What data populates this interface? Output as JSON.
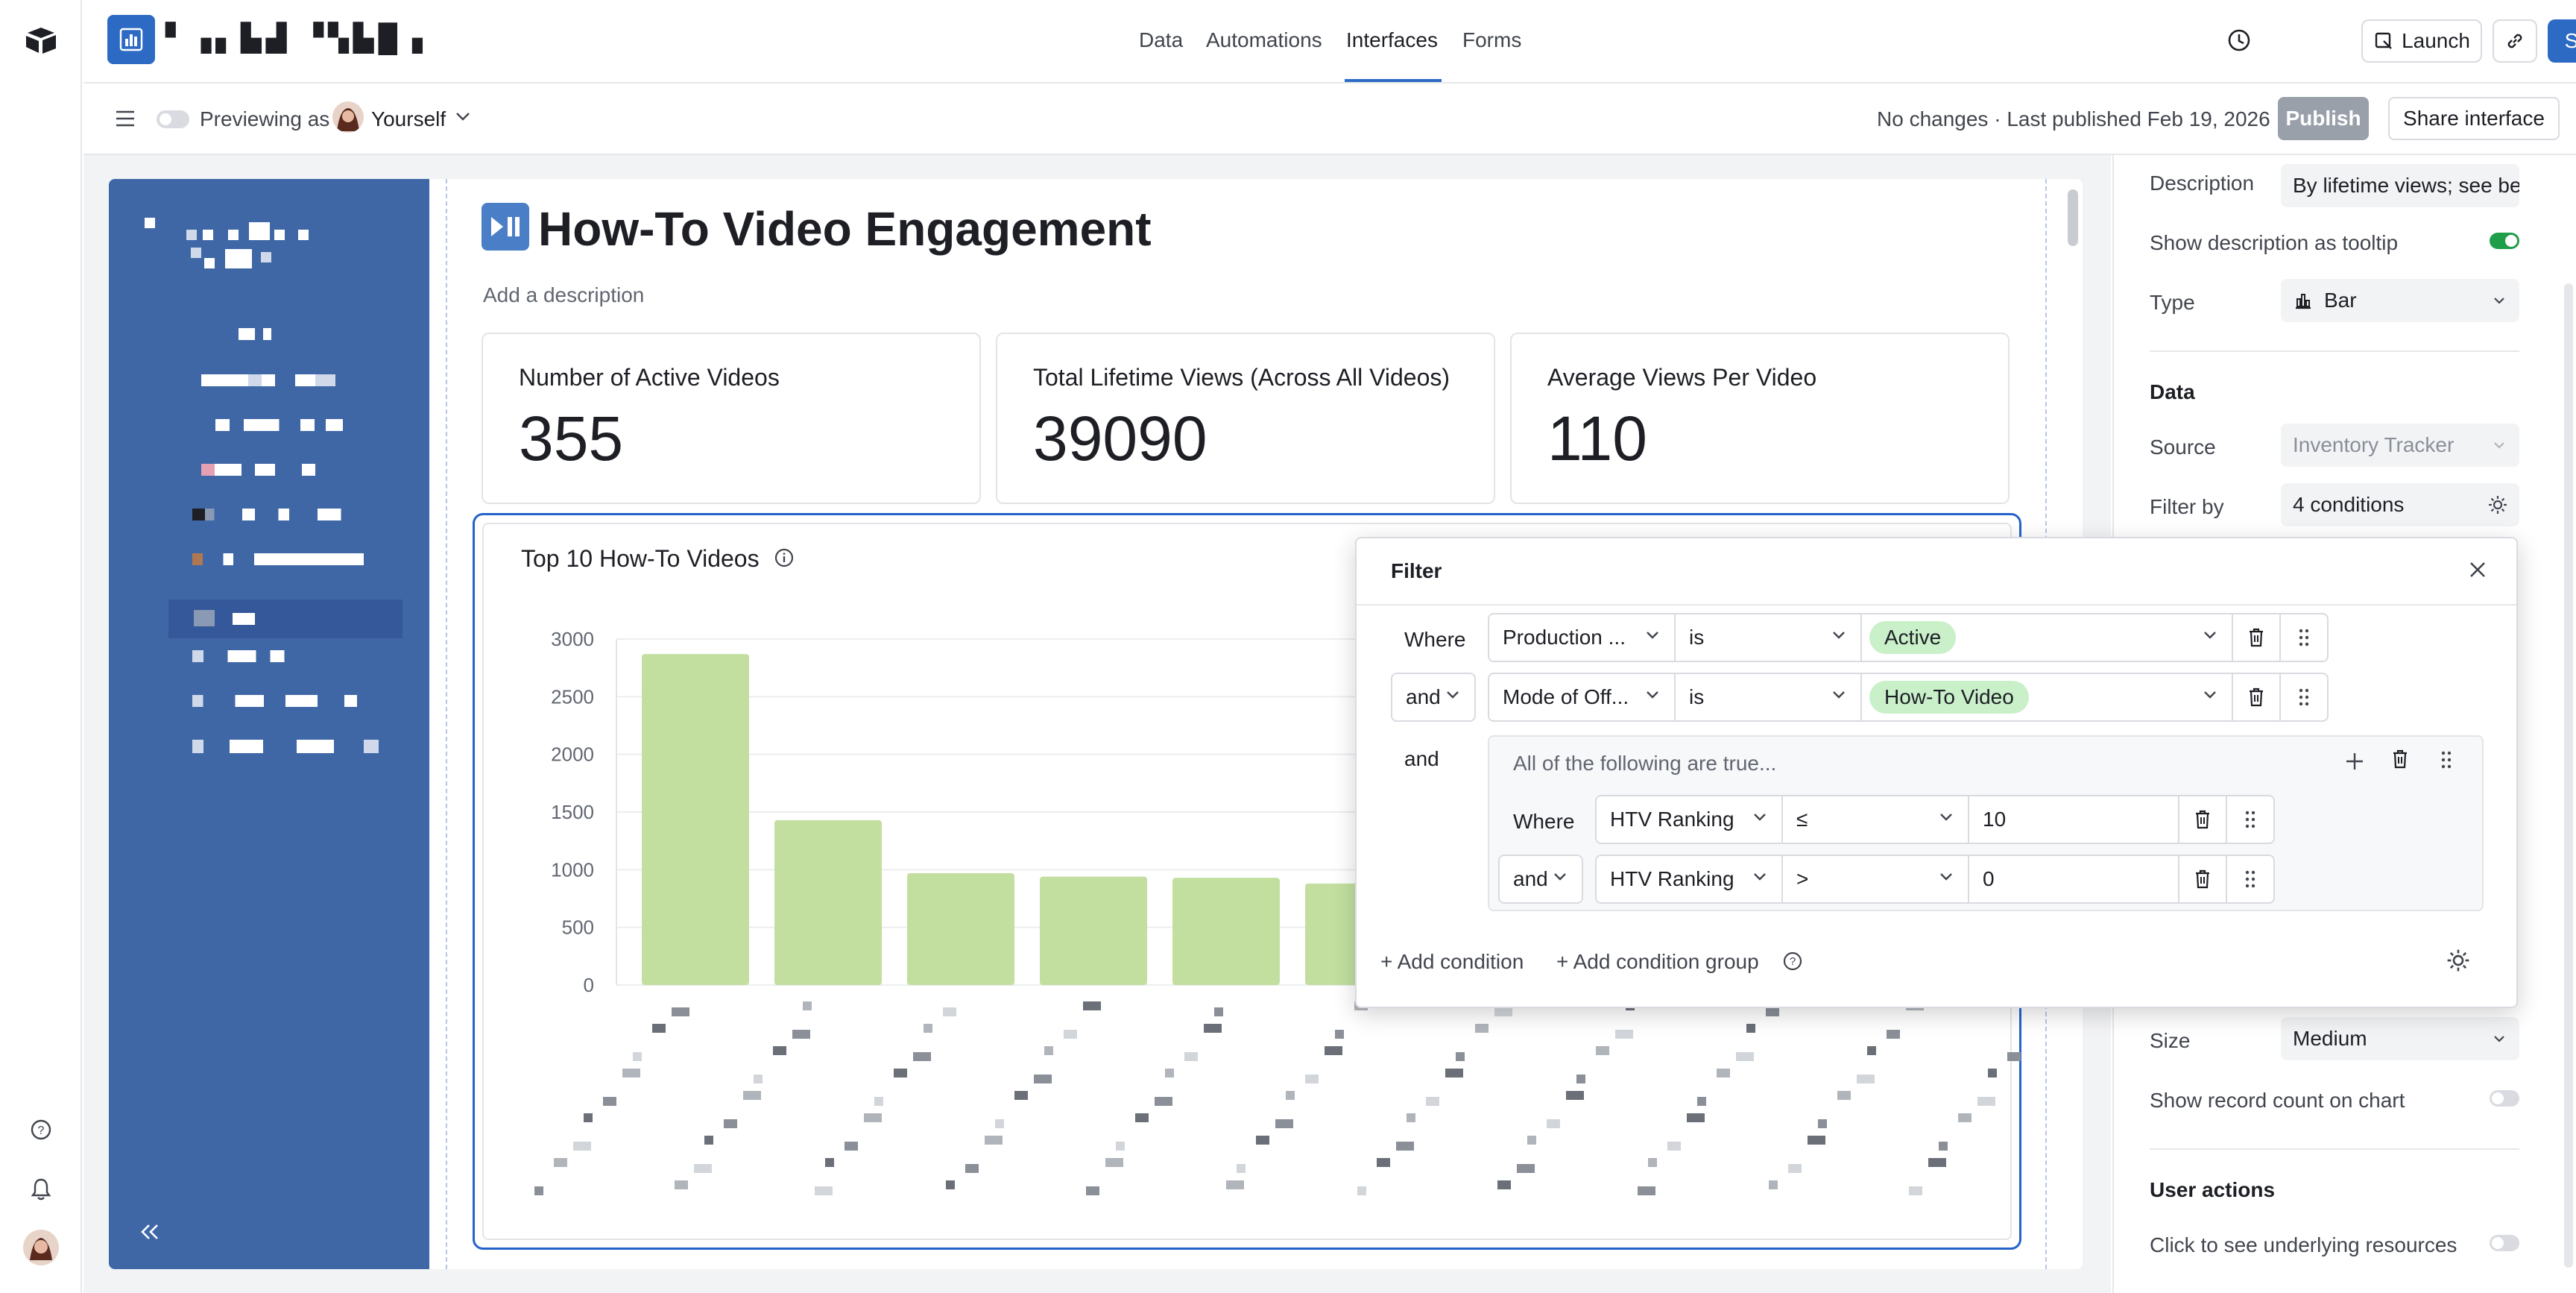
{
  "topbar": {
    "base_name": "▘▗▖▙▟ ▝▚▙█▗",
    "tabs": [
      {
        "label": "Data"
      },
      {
        "label": "Automations"
      },
      {
        "label": "Interfaces"
      },
      {
        "label": "Forms"
      }
    ],
    "launch_label": "Launch",
    "share_label": "Share"
  },
  "subbar": {
    "previewing_label": "Previewing as",
    "user_label": "Yourself",
    "status": "No changes · Last published Feb 19, 2026",
    "publish_label": "Publish",
    "share_interface_label": "Share interface"
  },
  "page": {
    "title": "How-To Video Engagement",
    "description_placeholder": "Add a description",
    "kpis": [
      {
        "label": "Number of Active Videos",
        "value": "355"
      },
      {
        "label": "Total Lifetime Views (Across All Videos)",
        "value": "39090"
      },
      {
        "label": "Average Views Per Video",
        "value": "110"
      }
    ]
  },
  "chart_data": {
    "type": "bar",
    "title": "Top 10 How-To Videos",
    "ylim": [
      0,
      3000
    ],
    "yticks": [
      "3000",
      "2500",
      "2000",
      "1500",
      "1000",
      "500",
      "0"
    ],
    "values": [
      2870,
      1430,
      970,
      940,
      930,
      880
    ],
    "color": "#c2dfa0"
  },
  "filter": {
    "title": "Filter",
    "rows": [
      {
        "conj": "Where",
        "field": "Production ...",
        "op": "is",
        "value": "Active"
      },
      {
        "conj": "and",
        "field": "Mode of Off...",
        "op": "is",
        "value": "How-To Video"
      }
    ],
    "group": {
      "conj": "and",
      "header": "All of the following are true...",
      "rows": [
        {
          "conj": "Where",
          "field": "HTV Ranking",
          "op": "≤",
          "value": "10"
        },
        {
          "conj": "and",
          "field": "HTV Ranking",
          "op": ">",
          "value": "0"
        }
      ]
    },
    "add_condition": "+ Add condition",
    "add_group": "+ Add condition group"
  },
  "rpanel": {
    "description_label": "Description",
    "description_value": "By lifetime views; see be",
    "tooltip_label": "Show description as tooltip",
    "type_label": "Type",
    "type_value": "Bar",
    "data_section": "Data",
    "source_label": "Source",
    "source_value": "Inventory Tracker",
    "filter_label": "Filter by",
    "filter_value": "4 conditions",
    "size_label": "Size",
    "size_value": "Medium",
    "record_count_label": "Show record count on chart",
    "user_actions_section": "User actions",
    "underlying_label": "Click to see underlying resources"
  },
  "colors": {
    "accent": "#2d6ac4",
    "nav_side": "#3f67a6",
    "bar": "#c2dfa0",
    "pill": "#c9f0c9",
    "toggle_on": "#1f9e4a"
  }
}
